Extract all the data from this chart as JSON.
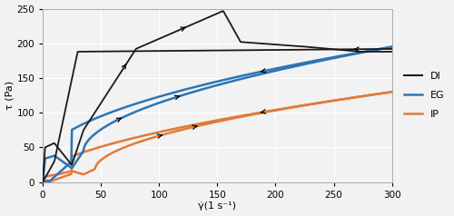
{
  "title": "",
  "xlabel": "γ̇(1 s⁻¹)",
  "ylabel": "τ (Pa)",
  "xlim": [
    0,
    300
  ],
  "ylim": [
    0,
    250
  ],
  "xticks": [
    0,
    50,
    100,
    150,
    200,
    250,
    300
  ],
  "yticks": [
    0,
    50,
    100,
    150,
    200,
    250
  ],
  "legend_labels": [
    "DI",
    "EG",
    "IP"
  ],
  "colors": {
    "DI": "#1a1a1a",
    "EG": "#2e74b5",
    "IP": "#e07b39"
  },
  "background_color": "#f2f2f2",
  "grid_color": "#ffffff"
}
